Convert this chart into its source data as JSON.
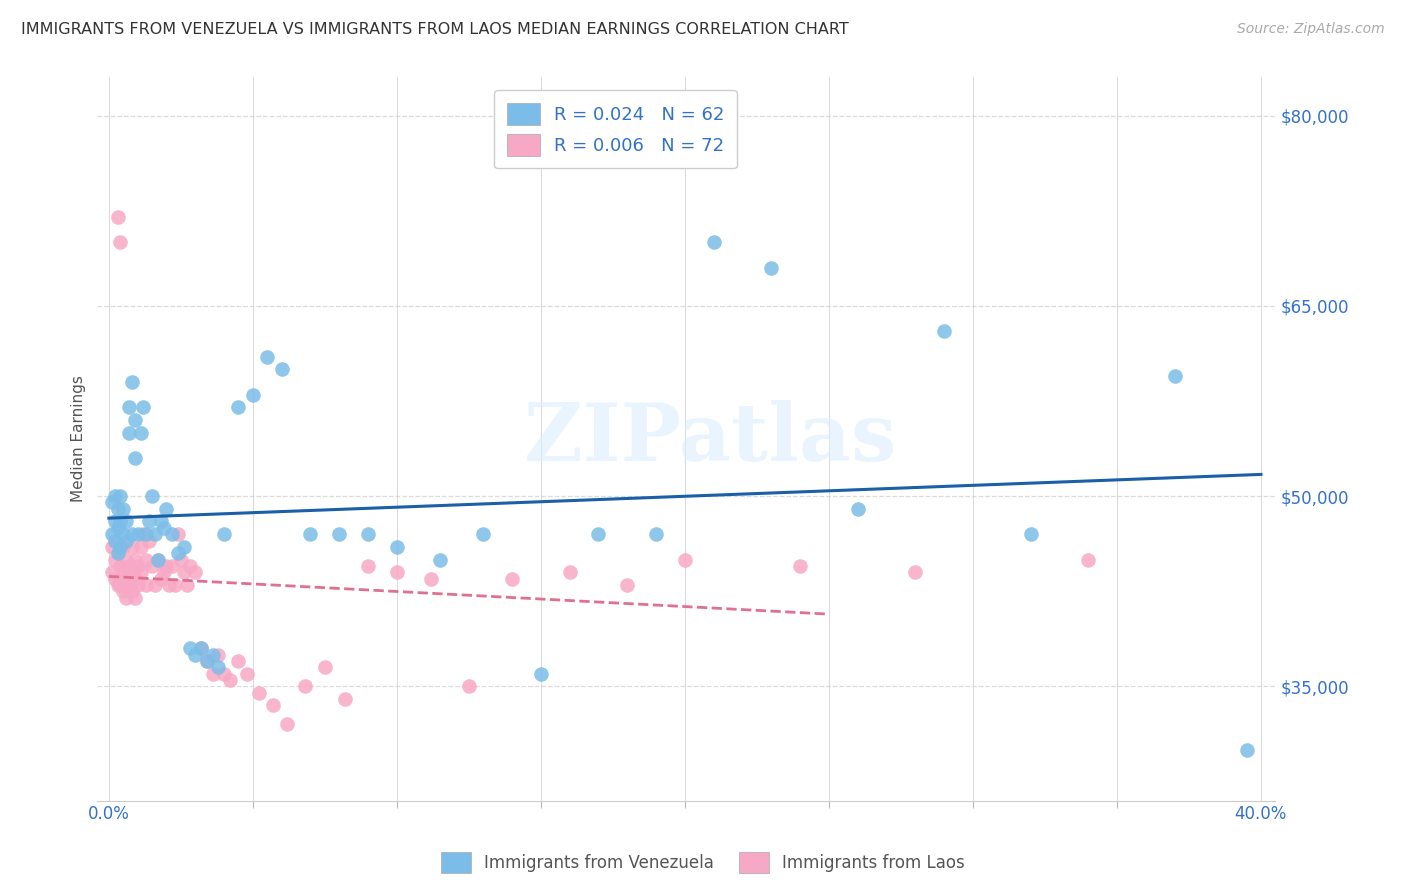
{
  "title": "IMMIGRANTS FROM VENEZUELA VS IMMIGRANTS FROM LAOS MEDIAN EARNINGS CORRELATION CHART",
  "source": "Source: ZipAtlas.com",
  "ylabel": "Median Earnings",
  "watermark": "ZIPatlas",
  "legend_r1": "R = 0.024",
  "legend_n1": "N = 62",
  "legend_r2": "R = 0.006",
  "legend_n2": "N = 72",
  "legend_label1": "Immigrants from Venezuela",
  "legend_label2": "Immigrants from Laos",
  "color_venezuela": "#7bbde8",
  "color_laos": "#f7a8c4",
  "color_trendline1": "#1a5fa8",
  "color_trendline2": "#e07090",
  "color_axis_labels": "#3472c8",
  "xlim": [
    -0.004,
    0.405
  ],
  "ylim": [
    26000,
    83000
  ],
  "xtick_left_label": "0.0%",
  "xtick_right_label": "40.0%",
  "xtick_left_val": 0.0,
  "xtick_right_val": 0.4,
  "yticks": [
    35000,
    50000,
    65000,
    80000
  ],
  "ytick_labels": [
    "$35,000",
    "$50,000",
    "$65,000",
    "$80,000"
  ],
  "venezuela_x": [
    0.001,
    0.001,
    0.002,
    0.002,
    0.002,
    0.003,
    0.003,
    0.003,
    0.004,
    0.004,
    0.004,
    0.005,
    0.005,
    0.006,
    0.006,
    0.007,
    0.007,
    0.008,
    0.008,
    0.009,
    0.009,
    0.01,
    0.011,
    0.012,
    0.013,
    0.014,
    0.015,
    0.016,
    0.017,
    0.018,
    0.019,
    0.02,
    0.022,
    0.024,
    0.026,
    0.028,
    0.03,
    0.032,
    0.034,
    0.036,
    0.038,
    0.04,
    0.045,
    0.05,
    0.055,
    0.06,
    0.07,
    0.08,
    0.09,
    0.1,
    0.115,
    0.13,
    0.15,
    0.17,
    0.19,
    0.21,
    0.23,
    0.26,
    0.29,
    0.32,
    0.37,
    0.395
  ],
  "venezuela_y": [
    47000,
    49500,
    48000,
    50000,
    46500,
    47500,
    49000,
    45500,
    48000,
    46000,
    50000,
    47000,
    49000,
    46500,
    48000,
    57000,
    55000,
    47000,
    59000,
    56000,
    53000,
    47000,
    55000,
    57000,
    47000,
    48000,
    50000,
    47000,
    45000,
    48000,
    47500,
    49000,
    47000,
    45500,
    46000,
    38000,
    37500,
    38000,
    37000,
    37500,
    36500,
    47000,
    57000,
    58000,
    61000,
    60000,
    47000,
    47000,
    47000,
    46000,
    45000,
    47000,
    36000,
    47000,
    47000,
    70000,
    68000,
    49000,
    63000,
    47000,
    59500,
    30000
  ],
  "laos_x": [
    0.001,
    0.001,
    0.002,
    0.002,
    0.003,
    0.003,
    0.003,
    0.004,
    0.004,
    0.004,
    0.005,
    0.005,
    0.005,
    0.006,
    0.006,
    0.006,
    0.007,
    0.007,
    0.008,
    0.008,
    0.008,
    0.009,
    0.009,
    0.009,
    0.01,
    0.01,
    0.011,
    0.011,
    0.012,
    0.013,
    0.013,
    0.014,
    0.015,
    0.016,
    0.017,
    0.018,
    0.019,
    0.02,
    0.021,
    0.022,
    0.023,
    0.024,
    0.025,
    0.026,
    0.027,
    0.028,
    0.03,
    0.032,
    0.034,
    0.036,
    0.038,
    0.04,
    0.042,
    0.045,
    0.048,
    0.052,
    0.057,
    0.062,
    0.068,
    0.075,
    0.082,
    0.09,
    0.1,
    0.112,
    0.125,
    0.14,
    0.16,
    0.18,
    0.2,
    0.24,
    0.28,
    0.34
  ],
  "laos_y": [
    46000,
    44000,
    45000,
    43500,
    72000,
    45500,
    43000,
    70000,
    44500,
    43000,
    46000,
    44000,
    42500,
    45000,
    43500,
    42000,
    44500,
    43000,
    46000,
    44000,
    42500,
    45000,
    43500,
    42000,
    44500,
    43000,
    46000,
    44000,
    47000,
    45000,
    43000,
    46500,
    44500,
    43000,
    45000,
    43500,
    44000,
    44500,
    43000,
    44500,
    43000,
    47000,
    45000,
    44000,
    43000,
    44500,
    44000,
    38000,
    37000,
    36000,
    37500,
    36000,
    35500,
    37000,
    36000,
    34500,
    33500,
    32000,
    35000,
    36500,
    34000,
    44500,
    44000,
    43500,
    35000,
    43500,
    44000,
    43000,
    45000,
    44500,
    44000,
    45000
  ]
}
